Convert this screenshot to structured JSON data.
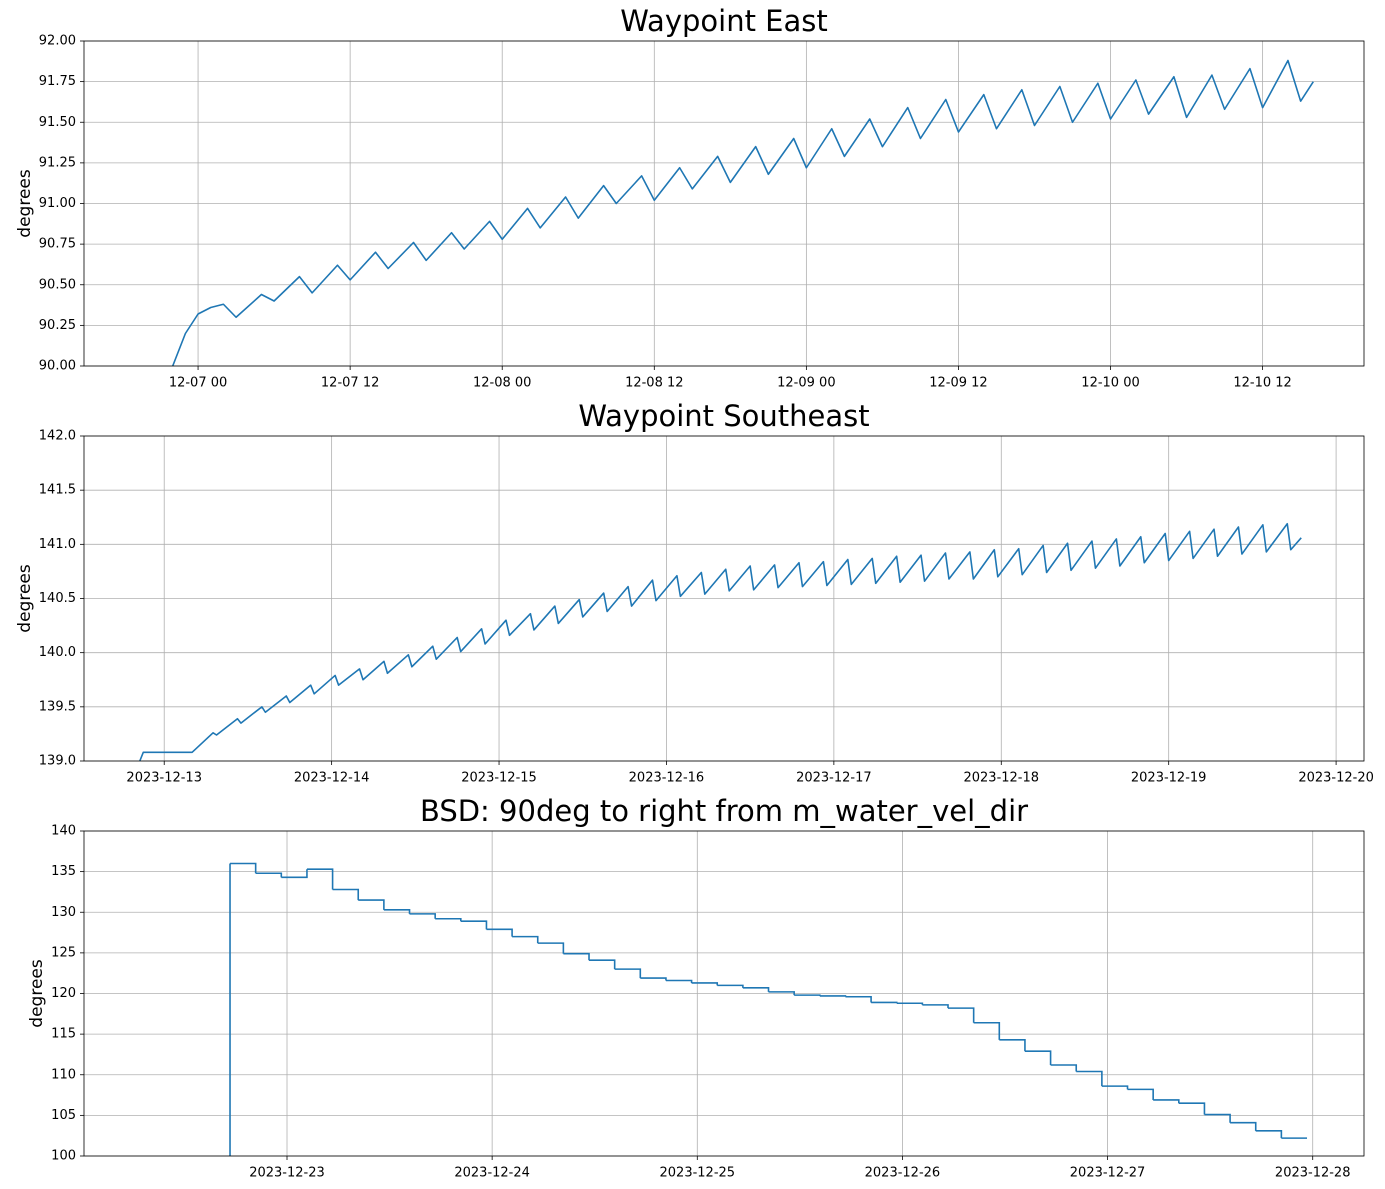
{
  "chart_data": [
    {
      "type": "line",
      "title": "Waypoint East",
      "ylabel": "degrees",
      "color": "#1f77b4",
      "grid": true,
      "xlim": [
        "12-06 15",
        "12-10 20"
      ],
      "xticks": [
        "12-07 00",
        "12-07 12",
        "12-08 00",
        "12-08 12",
        "12-09 00",
        "12-09 12",
        "12-10 00",
        "12-10 12"
      ],
      "ylim": [
        90,
        92
      ],
      "yticks": [
        {
          "value": 90,
          "label": "90.00"
        },
        90.25,
        {
          "value": 90.5,
          "label": "90.50"
        },
        90.75,
        {
          "value": 91,
          "label": "91.00"
        },
        91.25,
        {
          "value": 91.5,
          "label": "91.50"
        },
        91.75,
        {
          "value": 92,
          "label": "92.00"
        }
      ],
      "x": [
        "12-06 22",
        "12-06 23",
        "12-07 00",
        "12-07 01",
        "12-07 02",
        "12-07 03",
        "12-07 05",
        "12-07 06",
        "12-07 08",
        "12-07 09",
        "12-07 11",
        "12-07 12",
        "12-07 14",
        "12-07 15",
        "12-07 17",
        "12-07 18",
        "12-07 20",
        "12-07 21",
        "12-07 23",
        "12-08 00",
        "12-08 02",
        "12-08 03",
        "12-08 05",
        "12-08 06",
        "12-08 08",
        "12-08 09",
        "12-08 11",
        "12-08 12",
        "12-08 14",
        "12-08 15",
        "12-08 17",
        "12-08 18",
        "12-08 20",
        "12-08 21",
        "12-08 23",
        "12-09 00",
        "12-09 02",
        "12-09 03",
        "12-09 05",
        "12-09 06",
        "12-09 08",
        "12-09 09",
        "12-09 11",
        "12-09 12",
        "12-09 14",
        "12-09 15",
        "12-09 17",
        "12-09 18",
        "12-09 20",
        "12-09 21",
        "12-09 23",
        "12-10 00",
        "12-10 02",
        "12-10 03",
        "12-10 05",
        "12-10 06",
        "12-10 08",
        "12-10 09",
        "12-10 11",
        "12-10 12",
        "12-10 14",
        "12-10 15",
        "12-10 16"
      ],
      "values": [
        90.0,
        90.2,
        90.32,
        90.36,
        90.38,
        90.3,
        90.44,
        90.4,
        90.55,
        90.45,
        90.62,
        90.53,
        90.7,
        90.6,
        90.76,
        90.65,
        90.82,
        90.72,
        90.89,
        90.78,
        90.97,
        90.85,
        91.04,
        90.91,
        91.11,
        91.0,
        91.17,
        91.02,
        91.22,
        91.09,
        91.29,
        91.13,
        91.35,
        91.18,
        91.4,
        91.22,
        91.46,
        91.29,
        91.52,
        91.35,
        91.59,
        91.4,
        91.64,
        91.44,
        91.67,
        91.46,
        91.7,
        91.48,
        91.72,
        91.5,
        91.74,
        91.52,
        91.76,
        91.55,
        91.78,
        91.53,
        91.79,
        91.58,
        91.83,
        91.59,
        91.88,
        91.63,
        91.75
      ]
    },
    {
      "type": "line",
      "title": "Waypoint Southeast",
      "ylabel": "degrees",
      "color": "#1f77b4",
      "grid": true,
      "xlim": [
        "2023-12-12 12:30",
        "2023-12-20 04:00"
      ],
      "xticks": [
        "2023-12-13",
        "2023-12-14",
        "2023-12-15",
        "2023-12-16",
        "2023-12-17",
        "2023-12-18",
        "2023-12-19",
        "2023-12-20"
      ],
      "ylim": [
        139,
        142
      ],
      "yticks": [
        {
          "value": 139,
          "label": "139.0"
        },
        139.5,
        {
          "value": 140,
          "label": "140.0"
        },
        140.5,
        {
          "value": 141,
          "label": "141.0"
        },
        141.5,
        {
          "value": 142,
          "label": "142.0"
        }
      ],
      "x": [
        "2023-12-12 20:30",
        "2023-12-12 21:00",
        "2023-12-13 04:00",
        "2023-12-13 07:00",
        "2023-12-13 07:30",
        "2023-12-13 10:30",
        "2023-12-13 11:00",
        "2023-12-13 14:00",
        "2023-12-13 14:30",
        "2023-12-13 17:30",
        "2023-12-13 18:00",
        "2023-12-13 21:00",
        "2023-12-13 21:30",
        "2023-12-14 00:30",
        "2023-12-14 01:00",
        "2023-12-14 04:00",
        "2023-12-14 04:30",
        "2023-12-14 07:30",
        "2023-12-14 08:00",
        "2023-12-14 11:00",
        "2023-12-14 11:30",
        "2023-12-14 14:30",
        "2023-12-14 15:00",
        "2023-12-14 18:00",
        "2023-12-14 18:30",
        "2023-12-14 21:30",
        "2023-12-14 22:00",
        "2023-12-15 01:00",
        "2023-12-15 01:30",
        "2023-12-15 04:30",
        "2023-12-15 05:00",
        "2023-12-15 08:00",
        "2023-12-15 08:30",
        "2023-12-15 11:30",
        "2023-12-15 12:00",
        "2023-12-15 15:00",
        "2023-12-15 15:30",
        "2023-12-15 18:30",
        "2023-12-15 19:00",
        "2023-12-15 22:00",
        "2023-12-15 22:30",
        "2023-12-16 01:30",
        "2023-12-16 02:00",
        "2023-12-16 05:00",
        "2023-12-16 05:30",
        "2023-12-16 08:30",
        "2023-12-16 09:00",
        "2023-12-16 12:00",
        "2023-12-16 12:30",
        "2023-12-16 15:30",
        "2023-12-16 16:00",
        "2023-12-16 19:00",
        "2023-12-16 19:30",
        "2023-12-16 22:30",
        "2023-12-16 23:00",
        "2023-12-17 02:00",
        "2023-12-17 02:30",
        "2023-12-17 05:30",
        "2023-12-17 06:00",
        "2023-12-17 09:00",
        "2023-12-17 09:30",
        "2023-12-17 12:30",
        "2023-12-17 13:00",
        "2023-12-17 16:00",
        "2023-12-17 16:30",
        "2023-12-17 19:30",
        "2023-12-17 20:00",
        "2023-12-17 23:00",
        "2023-12-17 23:30",
        "2023-12-18 02:30",
        "2023-12-18 03:00",
        "2023-12-18 06:00",
        "2023-12-18 06:30",
        "2023-12-18 09:30",
        "2023-12-18 10:00",
        "2023-12-18 13:00",
        "2023-12-18 13:30",
        "2023-12-18 16:30",
        "2023-12-18 17:00",
        "2023-12-18 20:00",
        "2023-12-18 20:30",
        "2023-12-18 23:30",
        "2023-12-19 00:00",
        "2023-12-19 03:00",
        "2023-12-19 03:30",
        "2023-12-19 06:30",
        "2023-12-19 07:00",
        "2023-12-19 10:00",
        "2023-12-19 10:30",
        "2023-12-19 13:30",
        "2023-12-19 14:00",
        "2023-12-19 17:00",
        "2023-12-19 17:30",
        "2023-12-19 19:00"
      ],
      "values": [
        139.0,
        139.08,
        139.08,
        139.26,
        139.24,
        139.39,
        139.35,
        139.5,
        139.45,
        139.6,
        139.54,
        139.7,
        139.62,
        139.79,
        139.7,
        139.85,
        139.75,
        139.92,
        139.81,
        139.98,
        139.87,
        140.06,
        139.94,
        140.14,
        140.01,
        140.22,
        140.08,
        140.3,
        140.16,
        140.36,
        140.21,
        140.43,
        140.27,
        140.49,
        140.33,
        140.55,
        140.38,
        140.61,
        140.43,
        140.67,
        140.48,
        140.71,
        140.52,
        140.74,
        140.54,
        140.77,
        140.57,
        140.8,
        140.58,
        140.81,
        140.6,
        140.83,
        140.61,
        140.84,
        140.62,
        140.86,
        140.63,
        140.87,
        140.64,
        140.89,
        140.65,
        140.9,
        140.66,
        140.92,
        140.68,
        140.93,
        140.68,
        140.95,
        140.7,
        140.96,
        140.72,
        140.99,
        140.74,
        141.01,
        140.76,
        141.03,
        140.78,
        141.05,
        140.8,
        141.07,
        140.83,
        141.1,
        140.85,
        141.12,
        140.87,
        141.14,
        140.89,
        141.16,
        140.91,
        141.18,
        140.93,
        141.19,
        140.95,
        141.06
      ]
    },
    {
      "type": "line",
      "drawstyle": "steps-post",
      "title": "BSD: 90deg to right from m_water_vel_dir",
      "ylabel": "degrees",
      "color": "#1f77b4",
      "grid": true,
      "xlim": [
        "2023-12-22 00:15",
        "2023-12-28 06:00"
      ],
      "xticks": [
        "2023-12-23",
        "2023-12-24",
        "2023-12-25",
        "2023-12-26",
        "2023-12-27",
        "2023-12-28"
      ],
      "ylim": [
        100,
        140
      ],
      "yticks": [
        100,
        105,
        110,
        115,
        120,
        125,
        130,
        135,
        140
      ],
      "x": [
        "2023-12-22 17:20",
        "2023-12-22 17:20",
        "2023-12-22 20:20",
        "2023-12-22 23:20",
        "2023-12-23 02:20",
        "2023-12-23 05:20",
        "2023-12-23 08:20",
        "2023-12-23 11:20",
        "2023-12-23 14:20",
        "2023-12-23 17:20",
        "2023-12-23 20:20",
        "2023-12-23 23:20",
        "2023-12-24 02:20",
        "2023-12-24 05:20",
        "2023-12-24 08:20",
        "2023-12-24 11:20",
        "2023-12-24 14:20",
        "2023-12-24 17:20",
        "2023-12-24 20:20",
        "2023-12-24 23:20",
        "2023-12-25 02:20",
        "2023-12-25 05:20",
        "2023-12-25 08:20",
        "2023-12-25 11:20",
        "2023-12-25 14:20",
        "2023-12-25 17:20",
        "2023-12-25 20:20",
        "2023-12-25 23:20",
        "2023-12-26 02:20",
        "2023-12-26 05:20",
        "2023-12-26 08:20",
        "2023-12-26 11:20",
        "2023-12-26 14:20",
        "2023-12-26 17:20",
        "2023-12-26 20:20",
        "2023-12-26 23:20",
        "2023-12-27 02:20",
        "2023-12-27 05:20",
        "2023-12-27 08:20",
        "2023-12-27 11:20",
        "2023-12-27 14:20",
        "2023-12-27 17:20",
        "2023-12-27 20:20",
        "2023-12-27 23:20"
      ],
      "values": [
        100,
        136.0,
        134.8,
        134.3,
        135.3,
        132.8,
        131.5,
        130.3,
        129.8,
        129.2,
        128.9,
        127.9,
        127.0,
        126.2,
        124.9,
        124.1,
        123.0,
        121.9,
        121.6,
        121.3,
        121.0,
        120.7,
        120.2,
        119.8,
        119.7,
        119.6,
        118.9,
        118.8,
        118.6,
        118.2,
        116.4,
        114.3,
        112.9,
        111.2,
        110.4,
        108.6,
        108.2,
        106.9,
        106.5,
        105.1,
        104.1,
        103.1,
        102.2,
        102.2
      ]
    }
  ]
}
